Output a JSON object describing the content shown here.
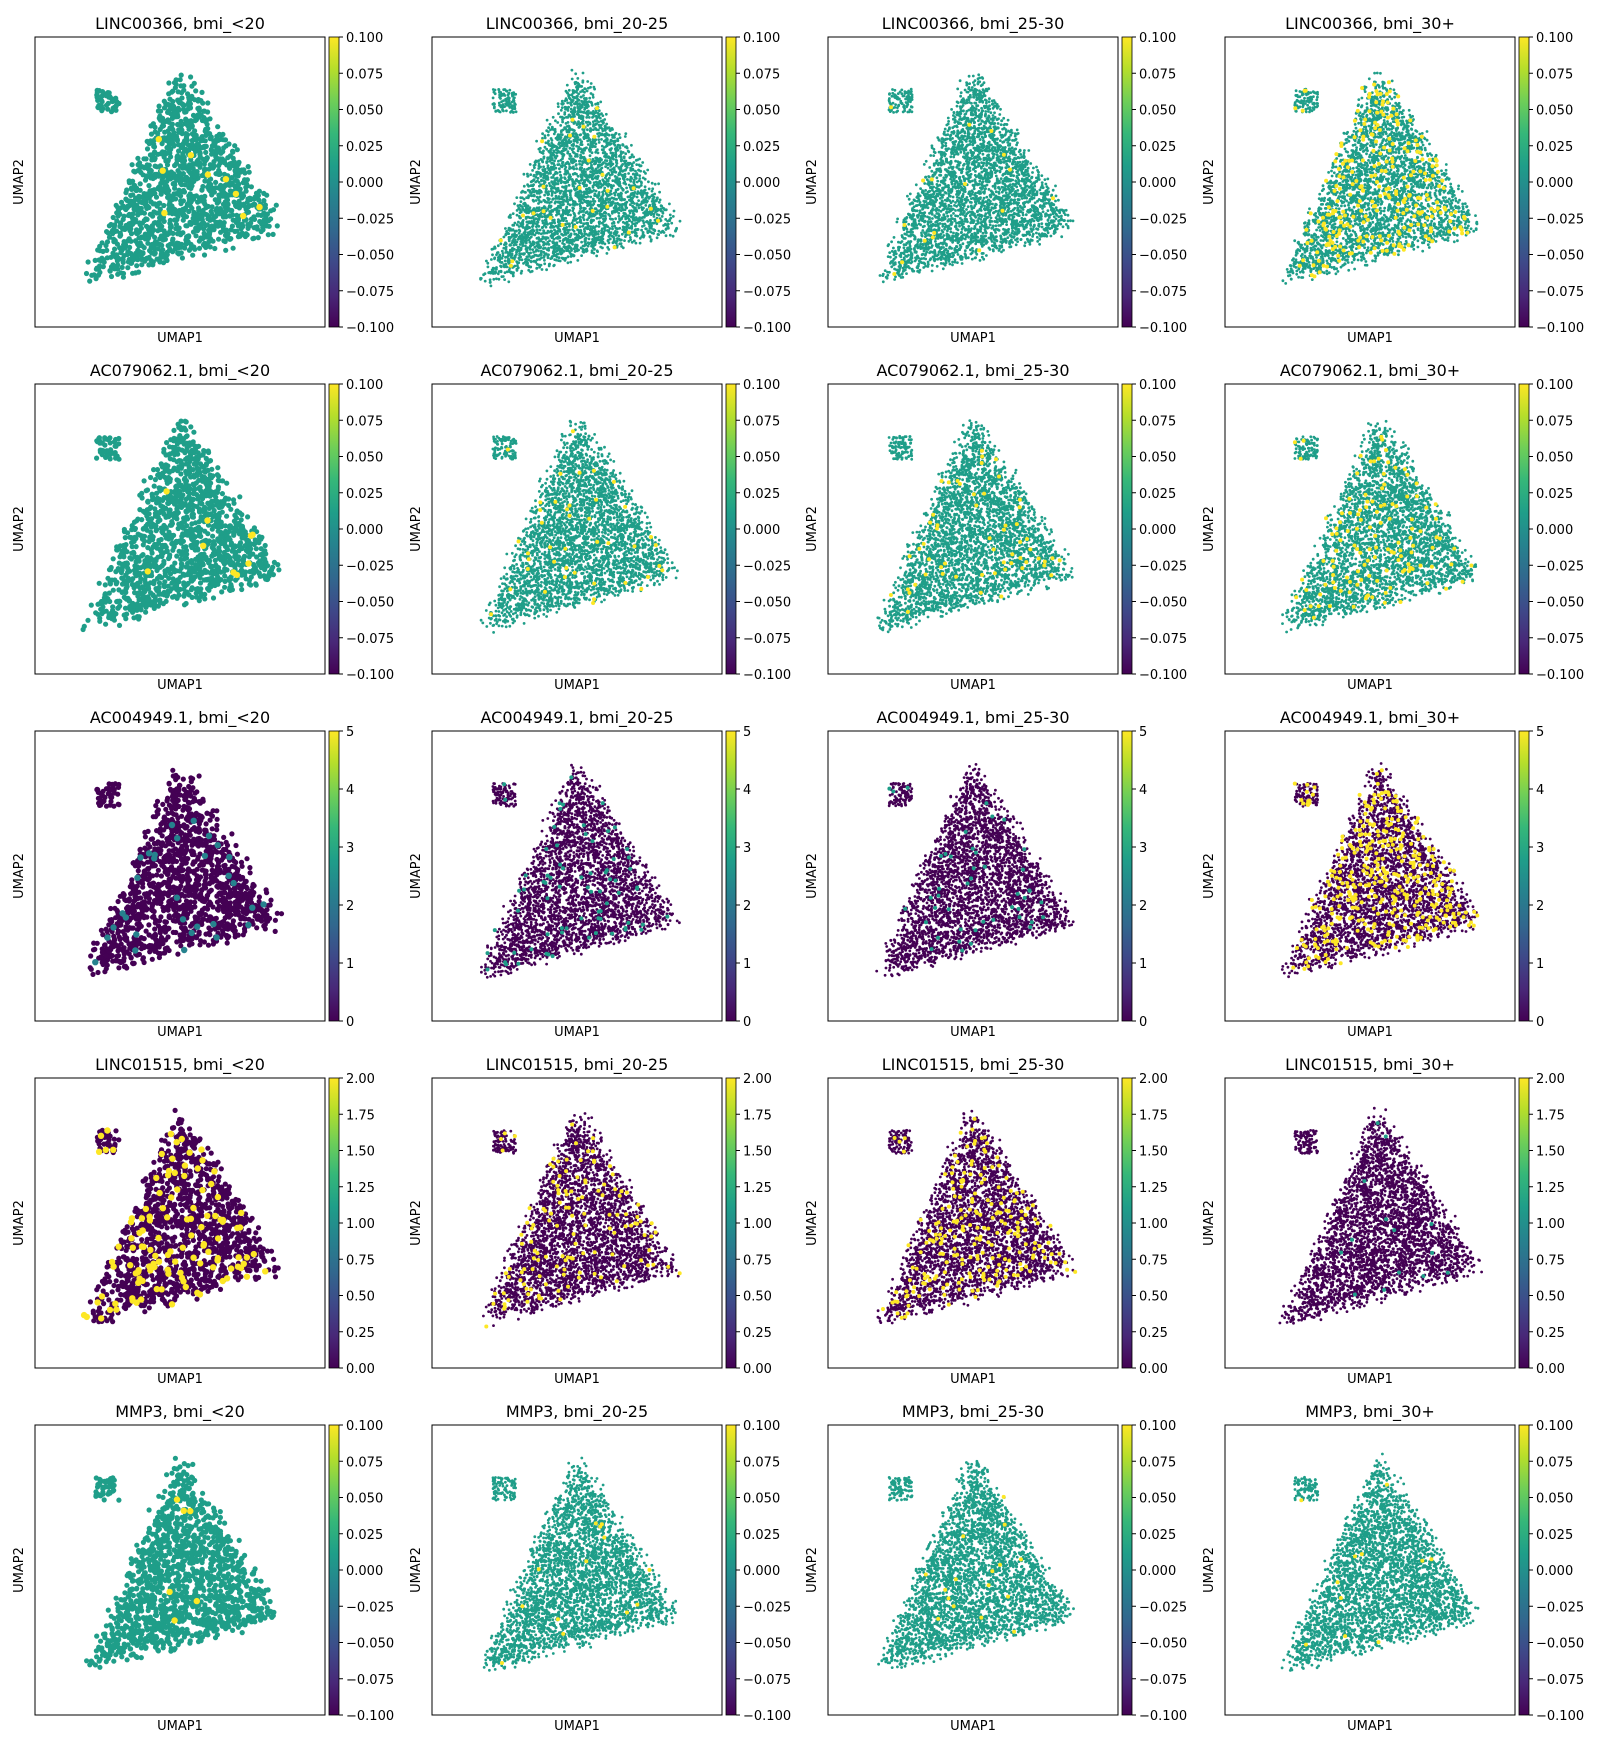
{
  "figure": {
    "xlabel": "UMAP1",
    "ylabel": "UMAP2",
    "colormap": [
      "#440154",
      "#482878",
      "#3e4989",
      "#31688e",
      "#26828e",
      "#1f9e89",
      "#35b779",
      "#6ece58",
      "#b5de2b",
      "#fde725"
    ]
  },
  "chart_data": [
    {
      "type": "scatter",
      "title": "LINC00366, bmi_<20",
      "gene": "LINC00366",
      "group": "bmi_<20",
      "xlabel": "UMAP1",
      "ylabel": "UMAP2",
      "colorbar": {
        "range": [
          -0.1,
          0.1
        ],
        "ticks": [
          "0.100",
          "0.075",
          "0.050",
          "0.025",
          "0.000",
          "−0.025",
          "−0.050",
          "−0.075",
          "−0.100"
        ]
      },
      "background_value": 0,
      "highlight_value": 0.1,
      "highlight_fraction": 0.006
    },
    {
      "type": "scatter",
      "title": "LINC00366, bmi_20-25",
      "gene": "LINC00366",
      "group": "bmi_20-25",
      "xlabel": "UMAP1",
      "ylabel": "UMAP2",
      "colorbar": {
        "range": [
          -0.1,
          0.1
        ],
        "ticks": [
          "0.100",
          "0.075",
          "0.050",
          "0.025",
          "0.000",
          "−0.025",
          "−0.050",
          "−0.075",
          "−0.100"
        ]
      },
      "background_value": 0,
      "highlight_value": 0.1,
      "highlight_fraction": 0.008
    },
    {
      "type": "scatter",
      "title": "LINC00366, bmi_25-30",
      "gene": "LINC00366",
      "group": "bmi_25-30",
      "xlabel": "UMAP1",
      "ylabel": "UMAP2",
      "colorbar": {
        "range": [
          -0.1,
          0.1
        ],
        "ticks": [
          "0.100",
          "0.075",
          "0.050",
          "0.025",
          "0.000",
          "−0.025",
          "−0.050",
          "−0.075",
          "−0.100"
        ]
      },
      "background_value": 0,
      "highlight_value": 0.1,
      "highlight_fraction": 0.006
    },
    {
      "type": "scatter",
      "title": "LINC00366, bmi_30+",
      "gene": "LINC00366",
      "group": "bmi_30+",
      "xlabel": "UMAP1",
      "ylabel": "UMAP2",
      "colorbar": {
        "range": [
          -0.1,
          0.1
        ],
        "ticks": [
          "0.100",
          "0.075",
          "0.050",
          "0.025",
          "0.000",
          "−0.025",
          "−0.050",
          "−0.075",
          "−0.100"
        ]
      },
      "background_value": 0,
      "highlight_value": 0.1,
      "highlight_fraction": 0.08
    },
    {
      "type": "scatter",
      "title": "AC079062.1, bmi_<20",
      "gene": "AC079062.1",
      "group": "bmi_<20",
      "xlabel": "UMAP1",
      "ylabel": "UMAP2",
      "colorbar": {
        "range": [
          -0.1,
          0.1
        ],
        "ticks": [
          "0.100",
          "0.075",
          "0.050",
          "0.025",
          "0.000",
          "−0.025",
          "−0.050",
          "−0.075",
          "−0.100"
        ]
      },
      "background_value": 0,
      "highlight_value": 0.1,
      "highlight_fraction": 0.006
    },
    {
      "type": "scatter",
      "title": "AC079062.1, bmi_20-25",
      "gene": "AC079062.1",
      "group": "bmi_20-25",
      "xlabel": "UMAP1",
      "ylabel": "UMAP2",
      "colorbar": {
        "range": [
          -0.1,
          0.1
        ],
        "ticks": [
          "0.100",
          "0.075",
          "0.050",
          "0.025",
          "0.000",
          "−0.025",
          "−0.050",
          "−0.075",
          "−0.100"
        ]
      },
      "background_value": 0,
      "highlight_value": 0.1,
      "highlight_fraction": 0.012
    },
    {
      "type": "scatter",
      "title": "AC079062.1, bmi_25-30",
      "gene": "AC079062.1",
      "group": "bmi_25-30",
      "xlabel": "UMAP1",
      "ylabel": "UMAP2",
      "colorbar": {
        "range": [
          -0.1,
          0.1
        ],
        "ticks": [
          "0.100",
          "0.075",
          "0.050",
          "0.025",
          "0.000",
          "−0.025",
          "−0.050",
          "−0.075",
          "−0.100"
        ]
      },
      "background_value": 0,
      "highlight_value": 0.1,
      "highlight_fraction": 0.015
    },
    {
      "type": "scatter",
      "title": "AC079062.1, bmi_30+",
      "gene": "AC079062.1",
      "group": "bmi_30+",
      "xlabel": "UMAP1",
      "ylabel": "UMAP2",
      "colorbar": {
        "range": [
          -0.1,
          0.1
        ],
        "ticks": [
          "0.100",
          "0.075",
          "0.050",
          "0.025",
          "0.000",
          "−0.025",
          "−0.050",
          "−0.075",
          "−0.100"
        ]
      },
      "background_value": 0,
      "highlight_value": 0.1,
      "highlight_fraction": 0.04
    },
    {
      "type": "scatter",
      "title": "AC004949.1, bmi_<20",
      "gene": "AC004949.1",
      "group": "bmi_<20",
      "xlabel": "UMAP1",
      "ylabel": "UMAP2",
      "colorbar": {
        "range": [
          0,
          5
        ],
        "ticks": [
          "5",
          "4",
          "3",
          "2",
          "1",
          "0"
        ]
      },
      "background_value": 0,
      "highlight_value": 2,
      "highlight_fraction": 0.03
    },
    {
      "type": "scatter",
      "title": "AC004949.1, bmi_20-25",
      "gene": "AC004949.1",
      "group": "bmi_20-25",
      "xlabel": "UMAP1",
      "ylabel": "UMAP2",
      "colorbar": {
        "range": [
          0,
          5
        ],
        "ticks": [
          "5",
          "4",
          "3",
          "2",
          "1",
          "0"
        ]
      },
      "background_value": 0,
      "highlight_value": 2.5,
      "highlight_fraction": 0.02
    },
    {
      "type": "scatter",
      "title": "AC004949.1, bmi_25-30",
      "gene": "AC004949.1",
      "group": "bmi_25-30",
      "xlabel": "UMAP1",
      "ylabel": "UMAP2",
      "colorbar": {
        "range": [
          0,
          5
        ],
        "ticks": [
          "5",
          "4",
          "3",
          "2",
          "1",
          "0"
        ]
      },
      "background_value": 0,
      "highlight_value": 2.5,
      "highlight_fraction": 0.015
    },
    {
      "type": "scatter",
      "title": "AC004949.1, bmi_30+",
      "gene": "AC004949.1",
      "group": "bmi_30+",
      "xlabel": "UMAP1",
      "ylabel": "UMAP2",
      "colorbar": {
        "range": [
          0,
          5
        ],
        "ticks": [
          "5",
          "4",
          "3",
          "2",
          "1",
          "0"
        ]
      },
      "background_value": 0,
      "highlight_value": 5,
      "highlight_fraction": 0.12
    },
    {
      "type": "scatter",
      "title": "LINC01515, bmi_<20",
      "gene": "LINC01515",
      "group": "bmi_<20",
      "xlabel": "UMAP1",
      "ylabel": "UMAP2",
      "colorbar": {
        "range": [
          0,
          2
        ],
        "ticks": [
          "2.00",
          "1.75",
          "1.50",
          "1.25",
          "1.00",
          "0.75",
          "0.50",
          "0.25",
          "0.00"
        ]
      },
      "background_value": 0,
      "highlight_value": 2,
      "highlight_fraction": 0.08
    },
    {
      "type": "scatter",
      "title": "LINC01515, bmi_20-25",
      "gene": "LINC01515",
      "group": "bmi_20-25",
      "xlabel": "UMAP1",
      "ylabel": "UMAP2",
      "colorbar": {
        "range": [
          0,
          2
        ],
        "ticks": [
          "2.00",
          "1.75",
          "1.50",
          "1.25",
          "1.00",
          "0.75",
          "0.50",
          "0.25",
          "0.00"
        ]
      },
      "background_value": 0,
      "highlight_value": 2,
      "highlight_fraction": 0.04
    },
    {
      "type": "scatter",
      "title": "LINC01515, bmi_25-30",
      "gene": "LINC01515",
      "group": "bmi_25-30",
      "xlabel": "UMAP1",
      "ylabel": "UMAP2",
      "colorbar": {
        "range": [
          0,
          2
        ],
        "ticks": [
          "2.00",
          "1.75",
          "1.50",
          "1.25",
          "1.00",
          "0.75",
          "0.50",
          "0.25",
          "0.00"
        ]
      },
      "background_value": 0,
      "highlight_value": 2,
      "highlight_fraction": 0.07
    },
    {
      "type": "scatter",
      "title": "LINC01515, bmi_30+",
      "gene": "LINC01515",
      "group": "bmi_30+",
      "xlabel": "UMAP1",
      "ylabel": "UMAP2",
      "colorbar": {
        "range": [
          0,
          2
        ],
        "ticks": [
          "2.00",
          "1.75",
          "1.50",
          "1.25",
          "1.00",
          "0.75",
          "0.50",
          "0.25",
          "0.00"
        ]
      },
      "background_value": 0,
      "highlight_value": 1,
      "highlight_fraction": 0.005
    },
    {
      "type": "scatter",
      "title": "MMP3, bmi_<20",
      "gene": "MMP3",
      "group": "bmi_<20",
      "xlabel": "UMAP1",
      "ylabel": "UMAP2",
      "colorbar": {
        "range": [
          -0.1,
          0.1
        ],
        "ticks": [
          "0.100",
          "0.075",
          "0.050",
          "0.025",
          "0.000",
          "−0.025",
          "−0.050",
          "−0.075",
          "−0.100"
        ]
      },
      "background_value": 0,
      "highlight_value": 0.1,
      "highlight_fraction": 0.004
    },
    {
      "type": "scatter",
      "title": "MMP3, bmi_20-25",
      "gene": "MMP3",
      "group": "bmi_20-25",
      "xlabel": "UMAP1",
      "ylabel": "UMAP2",
      "colorbar": {
        "range": [
          -0.1,
          0.1
        ],
        "ticks": [
          "0.100",
          "0.075",
          "0.050",
          "0.025",
          "0.000",
          "−0.025",
          "−0.050",
          "−0.075",
          "−0.100"
        ]
      },
      "background_value": 0,
      "highlight_value": 0.1,
      "highlight_fraction": 0.004
    },
    {
      "type": "scatter",
      "title": "MMP3, bmi_25-30",
      "gene": "MMP3",
      "group": "bmi_25-30",
      "xlabel": "UMAP1",
      "ylabel": "UMAP2",
      "colorbar": {
        "range": [
          -0.1,
          0.1
        ],
        "ticks": [
          "0.100",
          "0.075",
          "0.050",
          "0.025",
          "0.000",
          "−0.025",
          "−0.050",
          "−0.075",
          "−0.100"
        ]
      },
      "background_value": 0,
      "highlight_value": 0.1,
      "highlight_fraction": 0.004
    },
    {
      "type": "scatter",
      "title": "MMP3, bmi_30+",
      "gene": "MMP3",
      "group": "bmi_30+",
      "xlabel": "UMAP1",
      "ylabel": "UMAP2",
      "colorbar": {
        "range": [
          -0.1,
          0.1
        ],
        "ticks": [
          "0.100",
          "0.075",
          "0.050",
          "0.025",
          "0.000",
          "−0.025",
          "−0.050",
          "−0.075",
          "−0.100"
        ]
      },
      "background_value": 0,
      "highlight_value": 0.1,
      "highlight_fraction": 0.003
    }
  ]
}
